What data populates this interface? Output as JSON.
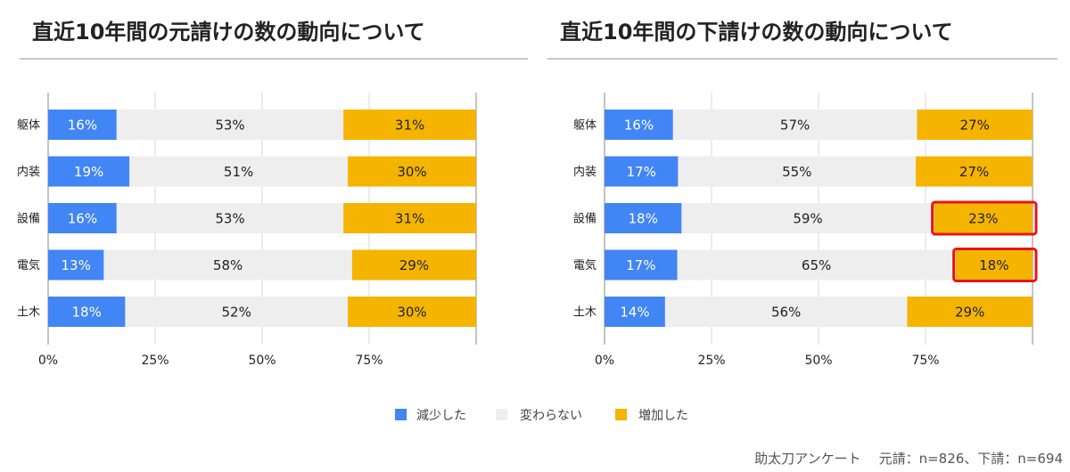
{
  "footer": {
    "source": "助太刀アンケート",
    "sample": "元請：n=826、下請：n=694"
  },
  "chart_data": [
    {
      "type": "bar",
      "orientation": "horizontal",
      "stacked": "percent",
      "title": "直近10年間の元請けの数の動向について",
      "categories": [
        "躯体",
        "内装",
        "設備",
        "電気",
        "土木"
      ],
      "series": [
        {
          "name": "減少した",
          "color": "#4285F4",
          "values": [
            16,
            19,
            16,
            13,
            18
          ]
        },
        {
          "name": "変わらない",
          "color": "#EEEEEE",
          "values": [
            53,
            51,
            53,
            58,
            52
          ]
        },
        {
          "name": "増加した",
          "color": "#F4B400",
          "values": [
            31,
            30,
            31,
            29,
            30
          ]
        }
      ],
      "value_suffix": "%",
      "xlabel": "",
      "ylabel": "",
      "xlim": [
        0,
        100
      ],
      "xticks": [
        0,
        25,
        50,
        75
      ],
      "xtick_labels": [
        "0%",
        "25%",
        "50%",
        "75%"
      ],
      "grid": true,
      "legend": "bottom",
      "highlights": []
    },
    {
      "type": "bar",
      "orientation": "horizontal",
      "stacked": "percent",
      "title": "直近10年間の下請けの数の動向について",
      "categories": [
        "躯体",
        "内装",
        "設備",
        "電気",
        "土木"
      ],
      "series": [
        {
          "name": "減少した",
          "color": "#4285F4",
          "values": [
            16,
            17,
            18,
            17,
            14
          ]
        },
        {
          "name": "変わらない",
          "color": "#EEEEEE",
          "values": [
            57,
            55,
            59,
            65,
            56
          ]
        },
        {
          "name": "増加した",
          "color": "#F4B400",
          "values": [
            27,
            27,
            23,
            18,
            29
          ]
        }
      ],
      "value_suffix": "%",
      "xlabel": "",
      "ylabel": "",
      "xlim": [
        0,
        100
      ],
      "xticks": [
        0,
        25,
        50,
        75
      ],
      "xtick_labels": [
        "0%",
        "25%",
        "50%",
        "75%"
      ],
      "grid": true,
      "legend": "bottom",
      "highlights": [
        {
          "category_index": 2,
          "series_index": 2
        },
        {
          "category_index": 3,
          "series_index": 2
        }
      ],
      "highlight_color": "#E8141B"
    }
  ]
}
